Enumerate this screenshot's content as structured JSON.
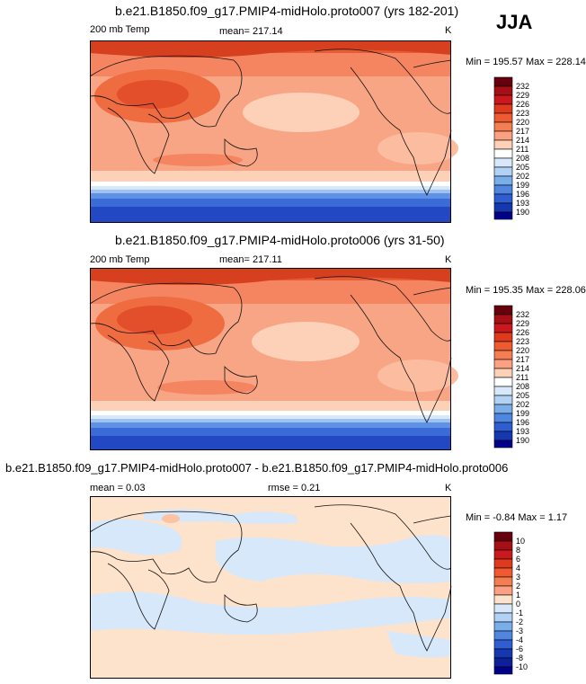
{
  "season": "JJA",
  "panels": [
    {
      "title": "b.e21.B1850.f09_g17.PMIP4-midHolo.proto007 (yrs 182-201)",
      "variable": "200 mb Temp",
      "stat_text": "mean= 217.14",
      "units": "K",
      "minmax": "Min = 195.57 Max = 228.14",
      "colorbar_labels": [
        "232",
        "229",
        "226",
        "223",
        "220",
        "217",
        "214",
        "211",
        "208",
        "205",
        "202",
        "199",
        "196",
        "193",
        "190"
      ]
    },
    {
      "title": "b.e21.B1850.f09_g17.PMIP4-midHolo.proto006 (yrs 31-50)",
      "variable": "200 mb Temp",
      "stat_text": "mean= 217.11",
      "units": "K",
      "minmax": "Min = 195.35 Max = 228.06",
      "colorbar_labels": [
        "232",
        "229",
        "226",
        "223",
        "220",
        "217",
        "214",
        "211",
        "208",
        "205",
        "202",
        "199",
        "196",
        "193",
        "190"
      ]
    },
    {
      "title": "b.e21.B1850.f09_g17.PMIP4-midHolo.proto007 - b.e21.B1850.f09_g17.PMIP4-midHolo.proto006",
      "mean_text": "mean =   0.03",
      "rmse_text": "rmse =   0.21",
      "units": "K",
      "minmax": "Min =  -0.84 Max =   1.17",
      "colorbar_labels": [
        "10",
        "8",
        "6",
        "4",
        "3",
        "2",
        "1",
        "0",
        "-1",
        "-2",
        "-3",
        "-4",
        "-6",
        "-8",
        "-10"
      ]
    }
  ],
  "colors": {
    "temp_scale": [
      "#67000d",
      "#a50f15",
      "#cb181d",
      "#e03a1e",
      "#ef5a31",
      "#f57d52",
      "#fca082",
      "#fdd0b8",
      "#ffffff",
      "#d6e8fa",
      "#b2d1f5",
      "#7aaeeb",
      "#4f86e0",
      "#2e5ed1",
      "#1537b0",
      "#00008a"
    ],
    "diff_scale": [
      "#67000d",
      "#a50f15",
      "#cb181d",
      "#e03a1e",
      "#ef5a31",
      "#f57d52",
      "#fca082",
      "#fde2cc",
      "#d6e8fa",
      "#b2d1f5",
      "#7aaeeb",
      "#4f86e0",
      "#2e5ed1",
      "#1537b0",
      "#00008a"
    ]
  }
}
